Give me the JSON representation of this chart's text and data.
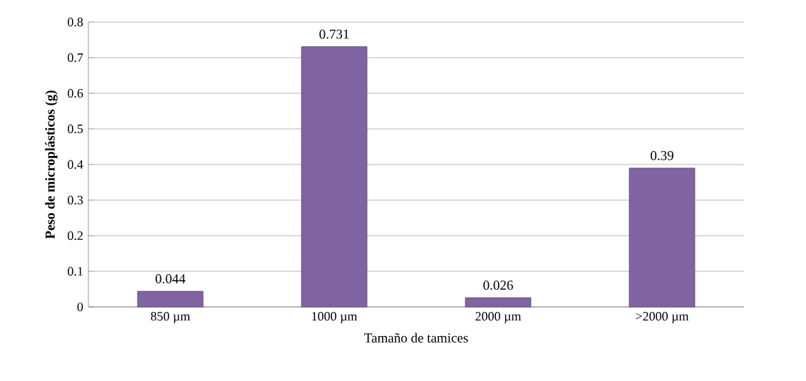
{
  "chart_data": {
    "type": "bar",
    "xlabel": "Tamaño de tamices",
    "ylabel": "Peso de microplásticos (g)",
    "categories": [
      "850 µm",
      "1000 µm",
      "2000 µm",
      ">2000 µm"
    ],
    "values": [
      0.044,
      0.731,
      0.026,
      0.39
    ],
    "color": "#8064a2",
    "ylim": [
      0,
      0.8
    ],
    "yticks": [
      0,
      0.1,
      0.2,
      0.3,
      0.4,
      0.5,
      0.6,
      0.7,
      0.8
    ],
    "grid": "y",
    "data_labels": true
  }
}
